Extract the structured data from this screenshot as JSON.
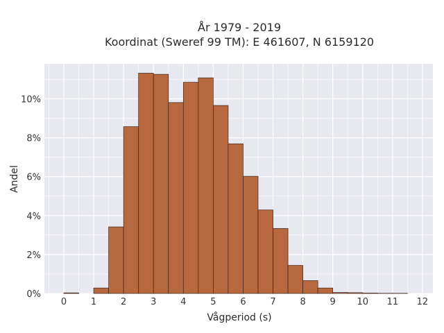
{
  "chart_data": {
    "type": "bar",
    "title_line1": "År 1979 - 2019",
    "title_line2": "Koordinat (Sweref 99 TM): E 461607, N 6159120",
    "xlabel": "Vågperiod (s)",
    "ylabel": "Andel",
    "xlim": [
      -0.65,
      12.35
    ],
    "ylim": [
      0,
      0.118
    ],
    "x_ticks": [
      0,
      1,
      2,
      3,
      4,
      5,
      6,
      7,
      8,
      9,
      10,
      11,
      12
    ],
    "x_tick_labels": [
      "0",
      "1",
      "2",
      "3",
      "4",
      "5",
      "6",
      "7",
      "8",
      "9",
      "10",
      "11",
      "12"
    ],
    "y_ticks": [
      0,
      0.02,
      0.04,
      0.06,
      0.08,
      0.1
    ],
    "y_tick_labels": [
      "0%",
      "2%",
      "4%",
      "6%",
      "8%",
      "10%"
    ],
    "bin_width": 0.5,
    "bins": [
      {
        "x0": 0.0,
        "value": 0.0003
      },
      {
        "x0": 0.5,
        "value": 0.0
      },
      {
        "x0": 1.0,
        "value": 0.0028
      },
      {
        "x0": 1.5,
        "value": 0.0342
      },
      {
        "x0": 2.0,
        "value": 0.0857
      },
      {
        "x0": 2.5,
        "value": 0.1132
      },
      {
        "x0": 3.0,
        "value": 0.1126
      },
      {
        "x0": 3.5,
        "value": 0.0981
      },
      {
        "x0": 4.0,
        "value": 0.1085
      },
      {
        "x0": 4.5,
        "value": 0.1108
      },
      {
        "x0": 5.0,
        "value": 0.0966
      },
      {
        "x0": 5.5,
        "value": 0.0769
      },
      {
        "x0": 6.0,
        "value": 0.0602
      },
      {
        "x0": 6.5,
        "value": 0.0429
      },
      {
        "x0": 7.0,
        "value": 0.0334
      },
      {
        "x0": 7.5,
        "value": 0.0144
      },
      {
        "x0": 8.0,
        "value": 0.0066
      },
      {
        "x0": 8.5,
        "value": 0.0028
      },
      {
        "x0": 9.0,
        "value": 0.0005
      },
      {
        "x0": 9.5,
        "value": 0.0004
      },
      {
        "x0": 10.0,
        "value": 0.0002
      },
      {
        "x0": 10.5,
        "value": 0.0001
      },
      {
        "x0": 11.0,
        "value": 0.0001
      }
    ],
    "grid": true,
    "colors": {
      "bar_fill": "#b7683e",
      "bar_edge": "#3d2418",
      "plot_background": "#e8e8f0",
      "grid": "#ffffff"
    }
  }
}
